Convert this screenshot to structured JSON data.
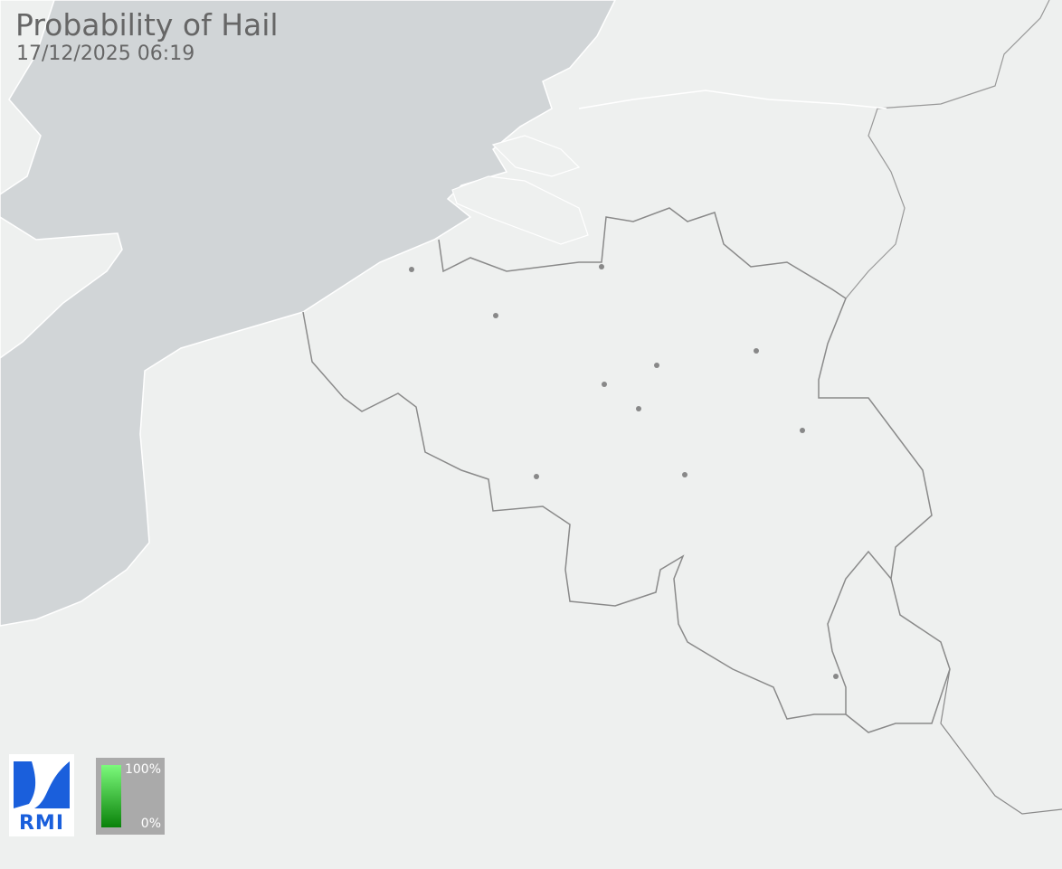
{
  "header": {
    "title": "Probability of Hail",
    "timestamp": "17/12/2025 06:19"
  },
  "logo": {
    "text": "RMI"
  },
  "legend": {
    "max_label": "100%",
    "min_label": "0%",
    "colors": {
      "max": "#7cfa7c",
      "min": "#0a820a"
    }
  },
  "colors": {
    "land": "#eef0ef",
    "sea": "#d1d5d7",
    "border": "#8a8a8a",
    "city": "#888888"
  }
}
